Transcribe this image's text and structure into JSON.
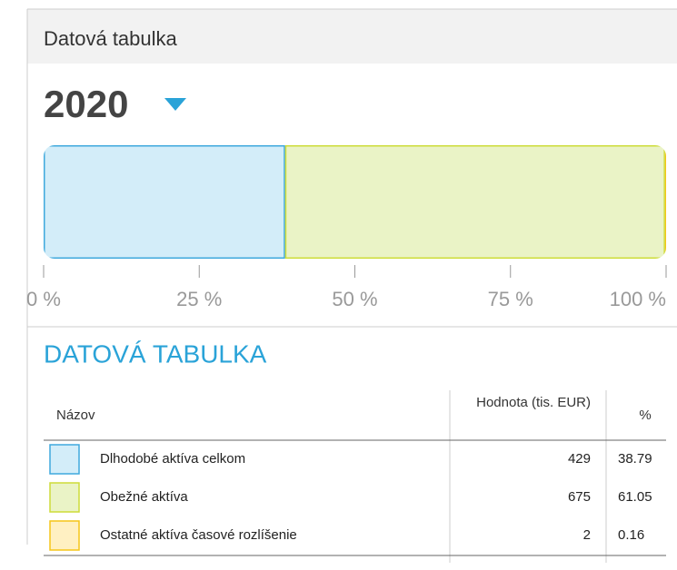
{
  "chart_data": {
    "type": "stacked_bar",
    "title": "Datová tabulka",
    "year": "2020",
    "xlim": [
      0,
      100
    ],
    "xticks": [
      {
        "value": 0,
        "label": "0 %"
      },
      {
        "value": 25,
        "label": "25 %"
      },
      {
        "value": 50,
        "label": "50 %"
      },
      {
        "value": 75,
        "label": "75 %"
      },
      {
        "value": 100,
        "label": "100 %"
      }
    ],
    "series": [
      {
        "name": "Dlhodobé aktíva celkom",
        "color": "#3fa9dd",
        "fill": "#d3edf9",
        "values": [
          38.79
        ],
        "amount": 429
      },
      {
        "name": "Obežné aktíva",
        "color": "#cddc39",
        "fill": "#eaf3c6",
        "values": [
          61.05
        ],
        "amount": 675
      },
      {
        "name": "Ostatné aktíva časové rozlíšenie",
        "color": "#f5c518",
        "fill": "#fff0c2",
        "values": [
          0.16
        ],
        "amount": 2
      }
    ],
    "table_title": "DATOVÁ TABULKA",
    "columns": [
      "Názov",
      "Hodnota (tis. EUR)",
      "%"
    ]
  }
}
